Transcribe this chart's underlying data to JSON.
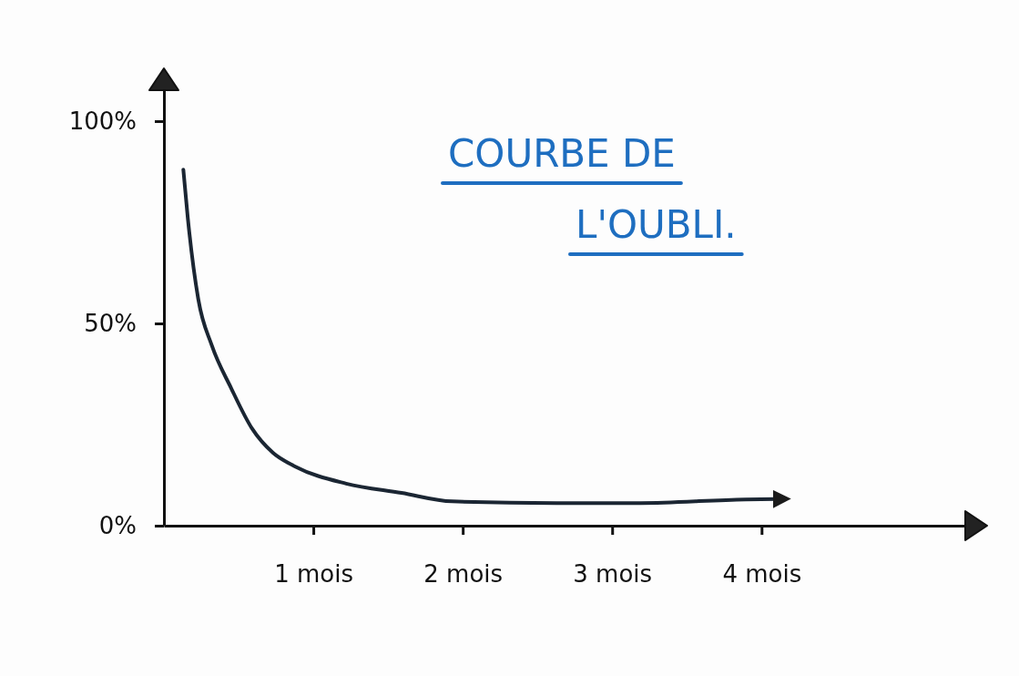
{
  "chart_data": {
    "type": "line",
    "title": "COURBE DE L'OUBLI.",
    "x": [
      0.13,
      0.16,
      0.23,
      0.32,
      0.45,
      0.59,
      0.73,
      0.88,
      1.22,
      1.59,
      1.93,
      2.63,
      3.19,
      3.89,
      4.1
    ],
    "series": [
      {
        "color": "#1b2633",
        "values": [
          88,
          76,
          56,
          44.6,
          34,
          24,
          18,
          14.6,
          10.4,
          8.1,
          6,
          5.6,
          5.6,
          6.5,
          6.6
        ]
      }
    ],
    "xlim": [
      0,
      5.4
    ],
    "xticks": [
      {
        "value": 1,
        "label": "1 mois"
      },
      {
        "value": 2,
        "label": "2 mois"
      },
      {
        "value": 3,
        "label": "3 mois"
      },
      {
        "value": 4,
        "label": "4 mois"
      }
    ],
    "ylim": [
      0,
      109
    ],
    "yticks": [
      {
        "value": 0,
        "label": "0%"
      },
      {
        "value": 50,
        "label": "50%"
      },
      {
        "value": 100,
        "label": "100%"
      }
    ]
  }
}
